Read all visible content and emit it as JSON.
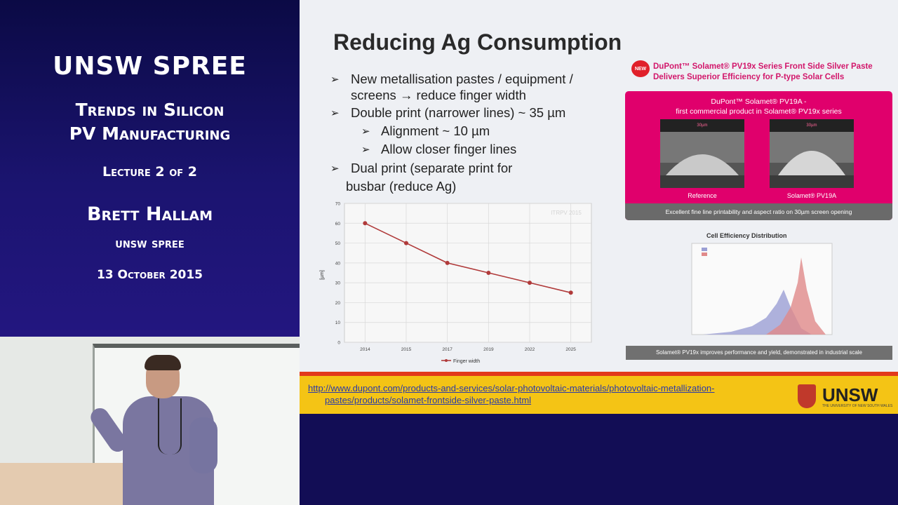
{
  "sidebar": {
    "title": "UNSW SPREE",
    "subtitle_line1": "Trends in Silicon",
    "subtitle_line2": "PV Manufacturing",
    "lecture": "Lecture 2 of 2",
    "presenter": "Brett Hallam",
    "affiliation": "unsw spree",
    "date": "13 October 2015"
  },
  "slide": {
    "title": "Reducing Ag Consumption",
    "bullets": {
      "b1_line1": "New metallisation pastes / equipment /",
      "b1_line2": "screens → reduce finger width",
      "b2": "Double print (narrower lines) ~ 35 µm",
      "b2a": "Alignment ~ 10 µm",
      "b2b": "Allow closer finger lines",
      "b3_line1": "Dual print (separate print for",
      "b3_line2": "busbar (reduce Ag)"
    },
    "bullet_glyph": "➢"
  },
  "chart_data": {
    "type": "line",
    "categories": [
      "2014",
      "2015",
      "2017",
      "2019",
      "2022",
      "2025"
    ],
    "series": [
      {
        "name": "Finger width",
        "values": [
          60,
          50,
          40,
          35,
          30,
          25
        ]
      }
    ],
    "ylabel": "[µm]",
    "ylim": [
      0,
      70
    ],
    "yticks": [
      "0",
      "10",
      "20",
      "30",
      "40",
      "50",
      "60",
      "70"
    ],
    "watermark": "ITRPV 2015",
    "grid": true,
    "legend": "bottom",
    "color": "#b03a3a"
  },
  "dupont": {
    "badge": "NEW",
    "headline_line1": "DuPont™ Solamet® PV19x Series Front Side Silver Paste",
    "headline_line2": "Delivers Superior Efficiency for P-type Solar Cells",
    "box_title_line1": "DuPont™ Solamet® PV19A -",
    "box_title_line2": "first commercial product in Solamet® PV19x series",
    "sem_left_label": "Reference",
    "sem_right_label": "Solamet® PV19A",
    "sem_scale": "30µm",
    "box_footer": "Excellent fine line printability and aspect ratio on 30µm screen opening",
    "hist_title": "Cell Efficiency Distribution",
    "hist_footer": "Solamet® PV19x improves performance and yield, demonstrated in industrial scale"
  },
  "footer": {
    "url_line1": "http://www.dupont.com/products-and-services/solar-photovoltaic-materials/photovoltaic-metallization-",
    "url_line2": "pastes/products/solamet-frontside-silver-paste.html",
    "logo_text": "UNSW",
    "logo_small": "THE UNIVERSITY OF NEW SOUTH WALES"
  }
}
